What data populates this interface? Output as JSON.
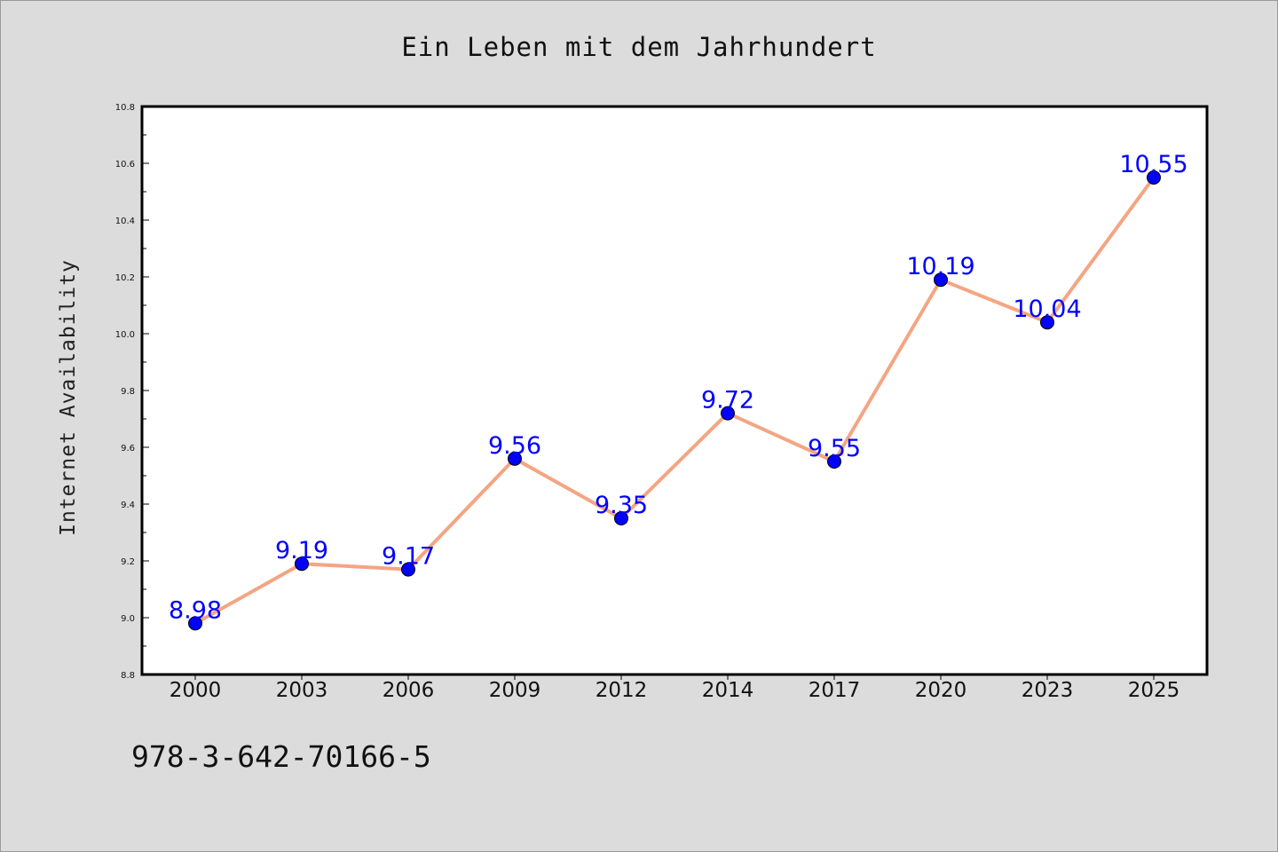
{
  "chart_data": {
    "type": "line",
    "title": "Ein Leben mit dem Jahrhundert",
    "xlabel": "",
    "ylabel": "Internet Availability",
    "categories": [
      "2000",
      "2003",
      "2006",
      "2009",
      "2012",
      "2014",
      "2017",
      "2020",
      "2023",
      "2025"
    ],
    "series": [
      {
        "values": [
          8.98,
          9.19,
          9.17,
          9.56,
          9.35,
          9.72,
          9.55,
          10.19,
          10.04,
          10.55
        ],
        "labels": [
          "8.98",
          "9.19",
          "9.17",
          "9.56",
          "9.35",
          "9.72",
          "9.55",
          "10.19",
          "10.04",
          "10.55"
        ],
        "line_color": "#f4a582",
        "marker_color": "#0000ff"
      }
    ],
    "ylim": [
      8.8,
      10.8
    ],
    "yticks": [
      "8.8",
      "9.0",
      "9.2",
      "9.4",
      "9.6",
      "9.8",
      "10.0",
      "10.2",
      "10.4",
      "10.6",
      "10.8"
    ],
    "grid": false,
    "legend": "none"
  },
  "footer": {
    "isbn": "978-3-642-70166-5"
  },
  "colors": {
    "background": "#dcdcdc",
    "plot_background": "#ffffff",
    "line": "#f4a582",
    "marker": "#0000ff",
    "data_label": "#0000ff"
  }
}
